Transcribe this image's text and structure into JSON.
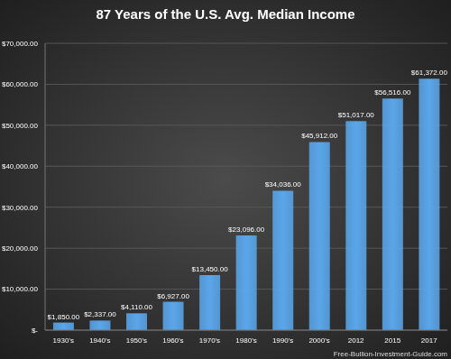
{
  "chart_data": {
    "type": "bar",
    "title": "87 Years of the U.S. Avg. Median Income",
    "categories": [
      "1930's",
      "1940's",
      "1950's",
      "1960's",
      "1970's",
      "1980's",
      "1990's",
      "2000's",
      "2012",
      "2015",
      "2017"
    ],
    "values": [
      1850,
      2337,
      4110,
      6927,
      13450,
      23096,
      34036,
      45912,
      51017,
      56516,
      61372
    ],
    "value_labels": [
      "$1,850.00",
      "$2,337.00",
      "$4,110.00",
      "$6,927.00",
      "$13,450.00",
      "$23,096.00",
      "$34,036.00",
      "$45,912.00",
      "$51,017.00",
      "$56,516.00",
      "$61,372.00"
    ],
    "data_labels": true,
    "color": "#5aa6ea",
    "ylim": [
      0,
      70000
    ],
    "yticks": [
      {
        "value": 0,
        "label": "$-"
      },
      {
        "value": 10000,
        "label": "$10,000.00"
      },
      {
        "value": 20000,
        "label": "$20,000.00"
      },
      {
        "value": 30000,
        "label": "$30,000.00"
      },
      {
        "value": 40000,
        "label": "$40,000.00"
      },
      {
        "value": 50000,
        "label": "$50,000.00"
      },
      {
        "value": 60000,
        "label": "$60,000.00"
      },
      {
        "value": 70000,
        "label": "$70,000.00"
      }
    ],
    "grid": true,
    "annotation": "Free-Bullion-Investment-Guide.com"
  }
}
